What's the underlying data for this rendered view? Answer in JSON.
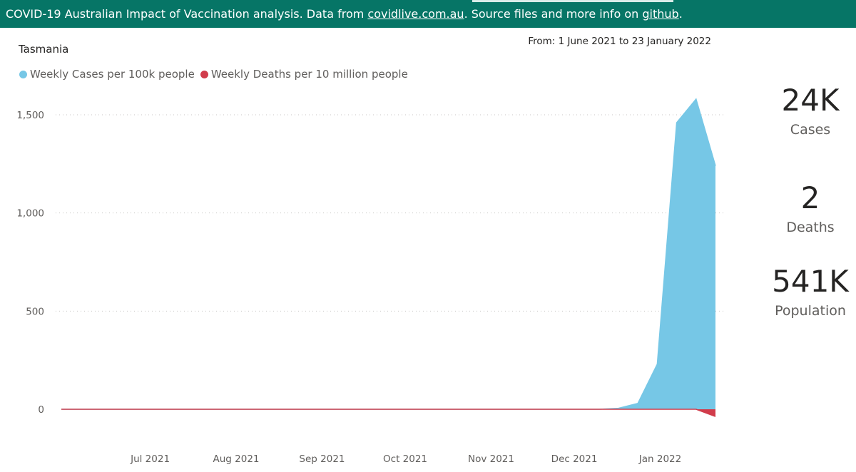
{
  "banner": {
    "prefix": "COVID-19 Australian Impact of Vaccination analysis. Data from ",
    "link1": "covidlive.com.au",
    "middle": ". Source files and more info on ",
    "link2": "github",
    "suffix": "."
  },
  "date_range": "From: 1 June 2021 to 23 January 2022",
  "kpis": [
    {
      "value": "24K",
      "label": "Cases"
    },
    {
      "value": "2",
      "label": "Deaths"
    },
    {
      "value": "541K",
      "label": "Population"
    }
  ],
  "colors": {
    "cases": "#76c7e6",
    "deaths": "#d13c4b",
    "banner": "#067566"
  },
  "chart_data": {
    "type": "area",
    "title": "Tasmania",
    "legend_position": "top-left",
    "grid": true,
    "y_ticks": [
      0,
      500,
      1000,
      1500
    ],
    "y_tick_labels": [
      "0",
      "500",
      "1,000",
      "1,500"
    ],
    "ylim": [
      -40,
      1650
    ],
    "x_tick_labels": [
      "Jul 2021",
      "Aug 2021",
      "Sep 2021",
      "Oct 2021",
      "Nov 2021",
      "Dec 2021",
      "Jan 2022"
    ],
    "x_tick_dates": [
      "2021-07-01",
      "2021-08-01",
      "2021-09-01",
      "2021-10-01",
      "2021-11-01",
      "2021-12-01",
      "2022-01-01"
    ],
    "x_range": [
      "2021-06-01",
      "2022-01-23"
    ],
    "series": [
      {
        "name": "Weekly Cases per 100k people",
        "color": "#76c7e6",
        "x": [
          "2021-06-01",
          "2021-12-12",
          "2021-12-19",
          "2021-12-26",
          "2022-01-02",
          "2022-01-09",
          "2022-01-16",
          "2022-01-23"
        ],
        "values": [
          0,
          0,
          5,
          30,
          230,
          1460,
          1580,
          1240
        ]
      },
      {
        "name": "Weekly Deaths per 10 million people",
        "color": "#d13c4b",
        "x": [
          "2021-06-01",
          "2022-01-16",
          "2022-01-23"
        ],
        "values": [
          0,
          0,
          -37
        ]
      }
    ]
  }
}
